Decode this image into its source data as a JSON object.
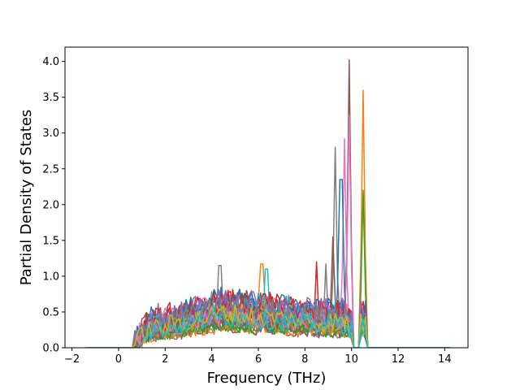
{
  "chart_data": {
    "type": "line",
    "title": "",
    "xlabel": "Frequency (THz)",
    "ylabel": "Partial Density of States",
    "xlim": [
      -2.3,
      15.0
    ],
    "ylim": [
      0.0,
      4.2
    ],
    "xticks": [
      -2,
      0,
      2,
      4,
      6,
      8,
      10,
      12,
      14
    ],
    "yticks": [
      0.0,
      0.5,
      1.0,
      1.5,
      2.0,
      2.5,
      3.0,
      3.5,
      4.0
    ],
    "xtick_labels": [
      "−2",
      "0",
      "2",
      "4",
      "6",
      "8",
      "10",
      "12",
      "14"
    ],
    "ytick_labels": [
      "0.0",
      "0.5",
      "1.0",
      "1.5",
      "2.0",
      "2.5",
      "3.0",
      "3.5",
      "4.0"
    ],
    "grid": false,
    "legend": "none",
    "x_range_of_curves": [
      -1.4,
      14.2
    ],
    "series_count": 10,
    "series_colors": [
      "#1f77b4",
      "#ff7f0e",
      "#2ca02c",
      "#d62728",
      "#9467bd",
      "#8c564b",
      "#e377c2",
      "#7f7f7f",
      "#bcbd22",
      "#17becf"
    ],
    "notable_peaks": [
      {
        "x": 9.9,
        "y": 4.02,
        "color": "#8c564b"
      },
      {
        "x": 10.5,
        "y": 3.6,
        "color": "#ff7f0e"
      },
      {
        "x": 9.9,
        "y": 3.25,
        "color": "#e377c2"
      },
      {
        "x": 9.7,
        "y": 2.92,
        "color": "#e377c2"
      },
      {
        "x": 9.3,
        "y": 2.8,
        "color": "#7f7f7f"
      },
      {
        "x": 9.55,
        "y": 2.35,
        "color": "#1f77b4"
      },
      {
        "x": 10.5,
        "y": 2.2,
        "color": "#2ca02c"
      },
      {
        "x": 9.2,
        "y": 1.55,
        "color": "#8c564b"
      },
      {
        "x": 4.35,
        "y": 1.15,
        "color": "#7f7f7f"
      },
      {
        "x": 6.15,
        "y": 1.17,
        "color": "#ff7f0e"
      },
      {
        "x": 6.35,
        "y": 1.1,
        "color": "#17becf"
      },
      {
        "x": 8.5,
        "y": 1.2,
        "color": "#d62728"
      },
      {
        "x": 8.9,
        "y": 1.17,
        "color": "#7f7f7f"
      },
      {
        "x": 1.7,
        "y": 0.62,
        "color": "#9467bd"
      },
      {
        "x": 1.4,
        "y": 0.57,
        "color": "#1f77b4"
      }
    ]
  }
}
